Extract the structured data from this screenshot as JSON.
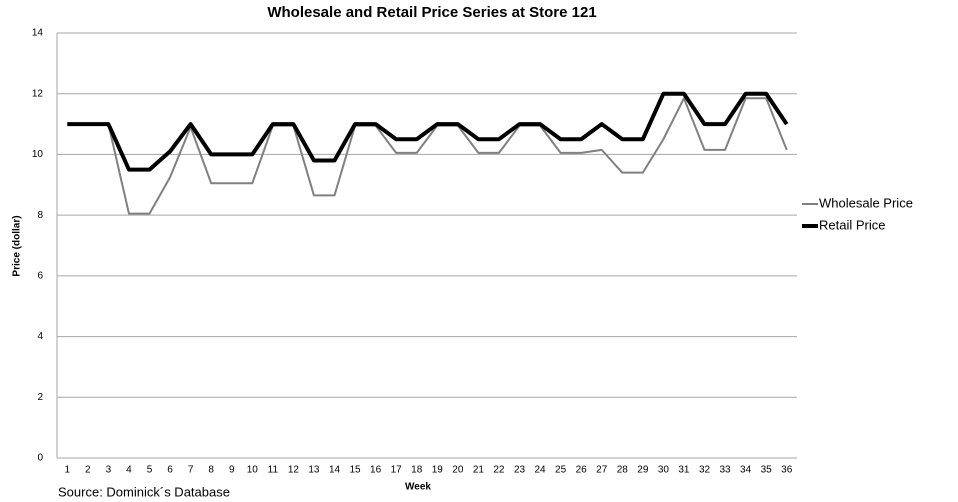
{
  "chart_data": {
    "type": "line",
    "title": "Wholesale and Retail Price Series at Store 121",
    "x_label": "Week",
    "y_label": "Price (dollar)",
    "source": "Source: Dominick´s Database",
    "categories": [
      1,
      2,
      3,
      4,
      5,
      6,
      7,
      8,
      9,
      10,
      11,
      12,
      13,
      14,
      15,
      16,
      17,
      18,
      19,
      20,
      21,
      22,
      23,
      24,
      25,
      26,
      27,
      28,
      29,
      30,
      31,
      32,
      33,
      34,
      35,
      36
    ],
    "series": [
      {
        "name": "Wholesale Price",
        "color": "#808080",
        "width": 2,
        "values": [
          11,
          11,
          11,
          8.05,
          8.05,
          9.25,
          10.9,
          9.05,
          9.05,
          9.05,
          10.95,
          10.95,
          8.65,
          8.65,
          10.95,
          10.95,
          10.05,
          10.05,
          10.95,
          10.95,
          10.05,
          10.05,
          10.95,
          10.95,
          10.05,
          10.05,
          10.15,
          9.4,
          9.4,
          10.5,
          11.85,
          10.15,
          10.15,
          11.85,
          11.85,
          10.15
        ]
      },
      {
        "name": "Retail Price",
        "color": "#000000",
        "width": 4,
        "values": [
          11,
          11,
          11,
          9.5,
          9.5,
          10.1,
          11,
          10,
          10,
          10,
          11,
          11,
          9.8,
          9.8,
          11,
          11,
          10.5,
          10.5,
          11,
          11,
          10.5,
          10.5,
          11,
          11,
          10.5,
          10.5,
          11,
          10.5,
          10.5,
          12,
          12,
          11,
          11,
          12,
          12,
          11
        ]
      }
    ],
    "ylim": [
      0,
      14
    ],
    "yticks": [
      0,
      2,
      4,
      6,
      8,
      10,
      12,
      14
    ],
    "grid": true,
    "legend": "right"
  }
}
